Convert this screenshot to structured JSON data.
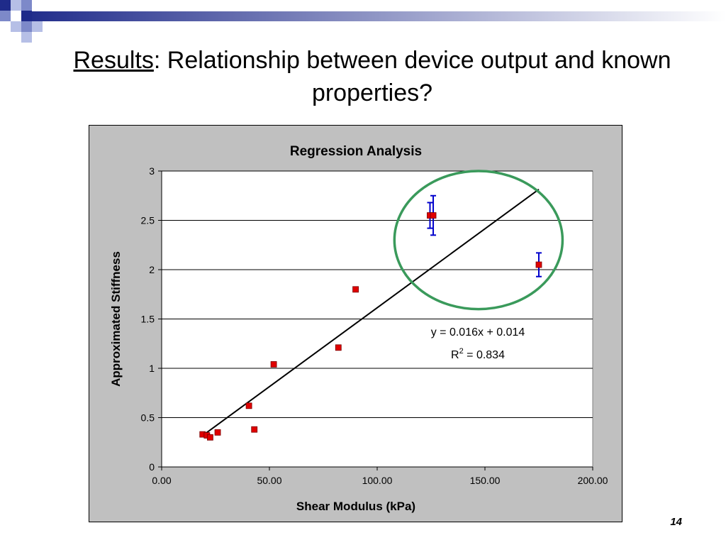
{
  "slide": {
    "title_underlined": "Results",
    "title_rest": ": Relationship between device output and known properties?",
    "page_number": "14"
  },
  "colors": {
    "chart_background": "#c0c0c0",
    "plot_background": "#ffffff",
    "marker": "#e00000",
    "error_bar": "#0000cc",
    "trendline": "#000000",
    "highlight_circle": "#3a9a5b",
    "header_bar": "#1f2b8a"
  },
  "chart_data": {
    "type": "scatter",
    "title": "Regression Analysis",
    "xlabel": "Shear Modulus (kPa)",
    "ylabel": "Approximated Stiffness",
    "xlim": [
      0,
      200
    ],
    "ylim": [
      0,
      3
    ],
    "x_ticks": [
      "0.00",
      "50.00",
      "100.00",
      "150.00",
      "200.00"
    ],
    "y_ticks": [
      "0",
      "0.5",
      "1",
      "1.5",
      "2",
      "2.5",
      "3"
    ],
    "grid": "horizontal",
    "points": [
      {
        "x": 19,
        "y": 0.33,
        "err": 0.01
      },
      {
        "x": 21,
        "y": 0.32,
        "err": 0.01
      },
      {
        "x": 22.5,
        "y": 0.3,
        "err": 0.01
      },
      {
        "x": 26,
        "y": 0.35,
        "err": 0.01
      },
      {
        "x": 40.5,
        "y": 0.62,
        "err": 0.01
      },
      {
        "x": 43,
        "y": 0.38,
        "err": 0.01
      },
      {
        "x": 52,
        "y": 1.04,
        "err": 0.02
      },
      {
        "x": 82,
        "y": 1.21,
        "err": 0.01
      },
      {
        "x": 90,
        "y": 1.8,
        "err": 0.02
      },
      {
        "x": 124.5,
        "y": 2.55,
        "err": 0.13
      },
      {
        "x": 126,
        "y": 2.55,
        "err": 0.2
      },
      {
        "x": 175,
        "y": 2.05,
        "err": 0.12
      }
    ],
    "trendline": {
      "slope": 0.016,
      "intercept": 0.014,
      "x_range": [
        19,
        175
      ],
      "equation": "y = 0.016x + 0.014",
      "r2_prefix": "R",
      "r2_sup": "2",
      "r2_value": " = 0.834"
    },
    "highlight": {
      "cx": 147,
      "cy": 2.3,
      "rx": 39,
      "ry": 0.7
    }
  }
}
